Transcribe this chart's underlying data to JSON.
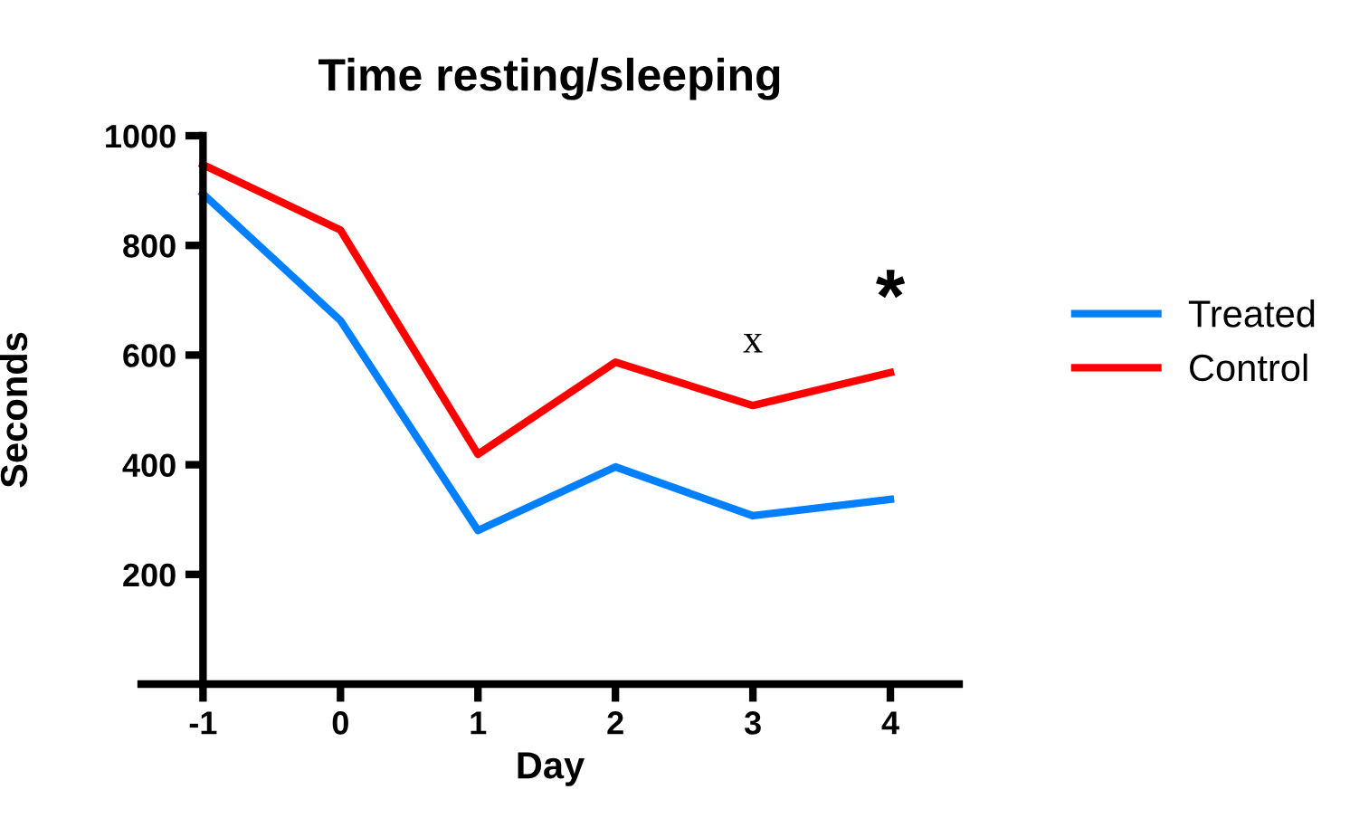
{
  "chart_data": {
    "type": "line",
    "title": "Time resting/sleeping",
    "xlabel": "Day",
    "ylabel": "Seconds",
    "x": [
      -1,
      0,
      1,
      2,
      3,
      4
    ],
    "series": [
      {
        "name": "Treated",
        "color": "#0080ff",
        "values": [
          894,
          663,
          280,
          396,
          307,
          337
        ]
      },
      {
        "name": "Control",
        "color": "#ff0000",
        "values": [
          947,
          828,
          419,
          587,
          508,
          568
        ]
      }
    ],
    "xlim": [
      -1.45,
      4.5
    ],
    "xticks": [
      -1,
      0,
      1,
      2,
      3,
      4
    ],
    "ylim": [
      0,
      1000
    ],
    "yticks": [
      200,
      400,
      600,
      800,
      1000
    ],
    "annotations": [
      "x",
      "*"
    ],
    "grid": false,
    "legend": "right",
    "marker": "none",
    "line_style": "solid"
  }
}
